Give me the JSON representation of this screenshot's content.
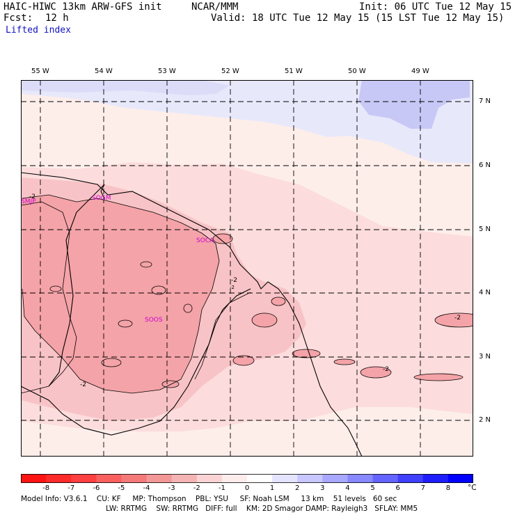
{
  "header": {
    "model": "HAIC-HIWC 13km ARW-GFS init",
    "org": "NCAR/MMM",
    "init": "Init: 06 UTC Tue 12 May 15",
    "fcst_label": "Fcst:",
    "fcst_value": "12 h",
    "valid": "Valid: 18 UTC Tue 12 May 15 (15 LST Tue 12 May 15)",
    "field": "Lifted index"
  },
  "map": {
    "lon_labels": [
      "55 W",
      "54 W",
      "53 W",
      "52 W",
      "51 W",
      "50 W",
      "49 W"
    ],
    "lat_labels": [
      "7 N",
      "6 N",
      "5 N",
      "4 N",
      "3 N",
      "2 N"
    ],
    "stations": [
      "SMJP",
      "SOGM",
      "SOCA",
      "SOOS"
    ],
    "contour_labels": [
      "-2",
      "-2",
      "-2",
      "-2",
      "-2",
      "-2"
    ],
    "fill_colors": {
      "li_minus3": "#f4a3a8",
      "li_minus2": "#f8c3c6",
      "li_minus1": "#fcdcdc",
      "li_0": "#fdeeea",
      "li_plus1": "#e8e8fb",
      "li_plus2": "#c8c8f6"
    }
  },
  "colorbar": {
    "ticks": [
      "-8",
      "-7",
      "-6",
      "-5",
      "-4",
      "-3",
      "-2",
      "-1",
      "0",
      "1",
      "2",
      "3",
      "4",
      "5",
      "6",
      "7",
      "8"
    ],
    "unit": "°C",
    "colors": [
      "#ff1414",
      "#ff2a2a",
      "#ff4040",
      "#f96060",
      "#f47a7a",
      "#f39797",
      "#f4b4b4",
      "#fad4d4",
      "#fdecec",
      "#ffffff",
      "#e4e4ff",
      "#c8c8ff",
      "#a8a8ff",
      "#8888ff",
      "#6464ff",
      "#4040ff",
      "#1e1eff",
      "#0000ff"
    ]
  },
  "footer": {
    "line1": "Model Info: V3.6.1    CU: KF     MP: Thompson    PBL: YSU     SF: Noah LSM     13 km    51 levels   60 sec",
    "line2": "LW: RRTMG    SW: RRTMG   DIFF: full    KM: 2D Smagor DAMP: Rayleigh3   SFLAY: MM5"
  }
}
